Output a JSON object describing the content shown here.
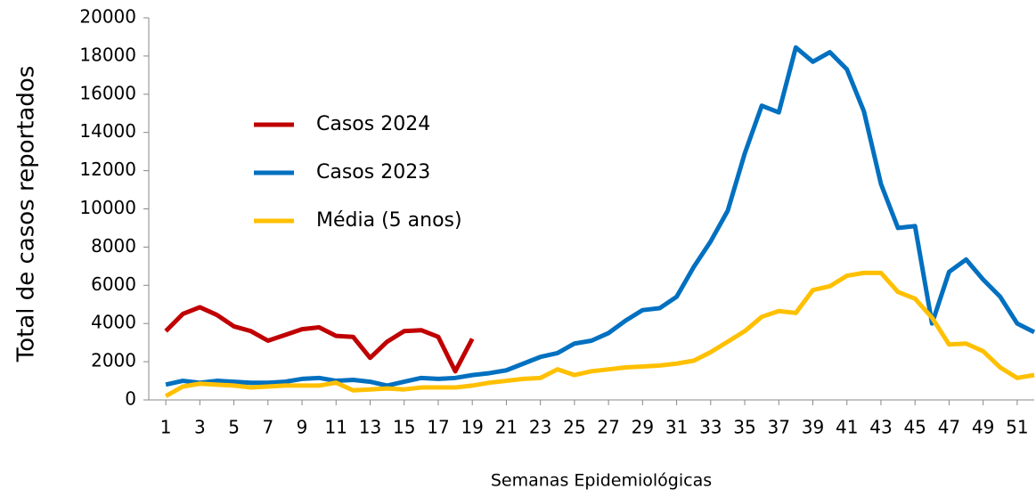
{
  "chart_data": {
    "type": "line",
    "y_label": "Total de casos reportados",
    "x_label": "Semanas Epidemiológicas",
    "x": [
      1,
      2,
      3,
      4,
      5,
      6,
      7,
      8,
      9,
      10,
      11,
      12,
      13,
      14,
      15,
      16,
      17,
      18,
      19,
      20,
      21,
      22,
      23,
      24,
      25,
      26,
      27,
      28,
      29,
      30,
      31,
      32,
      33,
      34,
      35,
      36,
      37,
      38,
      39,
      40,
      41,
      42,
      43,
      44,
      45,
      46,
      47,
      48,
      49,
      50,
      51,
      52
    ],
    "xlim": [
      0,
      52
    ],
    "xticks": [
      1,
      3,
      5,
      7,
      9,
      11,
      13,
      15,
      17,
      19,
      21,
      23,
      25,
      27,
      29,
      31,
      33,
      35,
      37,
      39,
      41,
      43,
      45,
      47,
      49,
      51
    ],
    "ylim": [
      0,
      20000
    ],
    "yticks": [
      0,
      2000,
      4000,
      6000,
      8000,
      10000,
      12000,
      14000,
      16000,
      18000,
      20000
    ],
    "series": [
      {
        "name": "Casos 2024",
        "color": "#c00000",
        "values": [
          3600,
          4500,
          4850,
          4450,
          3850,
          3600,
          3100,
          3400,
          3700,
          3800,
          3350,
          3300,
          2200,
          3050,
          3600,
          3650,
          3300,
          1500,
          3200,
          null,
          null,
          null,
          null,
          null,
          null,
          null,
          null,
          null,
          null,
          null,
          null,
          null,
          null,
          null,
          null,
          null,
          null,
          null,
          null,
          null,
          null,
          null,
          null,
          null,
          null,
          null,
          null,
          null,
          null,
          null,
          null,
          null
        ]
      },
      {
        "name": "Casos 2023",
        "color": "#0070c0",
        "values": [
          800,
          1000,
          900,
          1000,
          950,
          900,
          900,
          950,
          1100,
          1150,
          1000,
          1050,
          950,
          750,
          950,
          1150,
          1100,
          1150,
          1300,
          1400,
          1550,
          1900,
          2250,
          2450,
          2950,
          3100,
          3500,
          4150,
          4700,
          4800,
          5400,
          6950,
          8300,
          9900,
          12900,
          15400,
          15050,
          18450,
          17700,
          18200,
          17300,
          15100,
          11300,
          9000,
          9100,
          4000,
          6700,
          7350,
          6300,
          5400,
          4000,
          3550
        ]
      },
      {
        "name": "Média (5 anos)",
        "color": "#ffc000",
        "values": [
          200,
          700,
          850,
          800,
          750,
          650,
          700,
          750,
          750,
          750,
          900,
          500,
          550,
          600,
          550,
          650,
          650,
          650,
          750,
          900,
          1000,
          1100,
          1150,
          1600,
          1300,
          1500,
          1600,
          1700,
          1750,
          1800,
          1900,
          2050,
          2500,
          3050,
          3600,
          4350,
          4650,
          4550,
          5750,
          5950,
          6500,
          6650,
          6650,
          5650,
          5300,
          4300,
          2900,
          2950,
          2550,
          1700,
          1150,
          1300
        ]
      }
    ]
  }
}
